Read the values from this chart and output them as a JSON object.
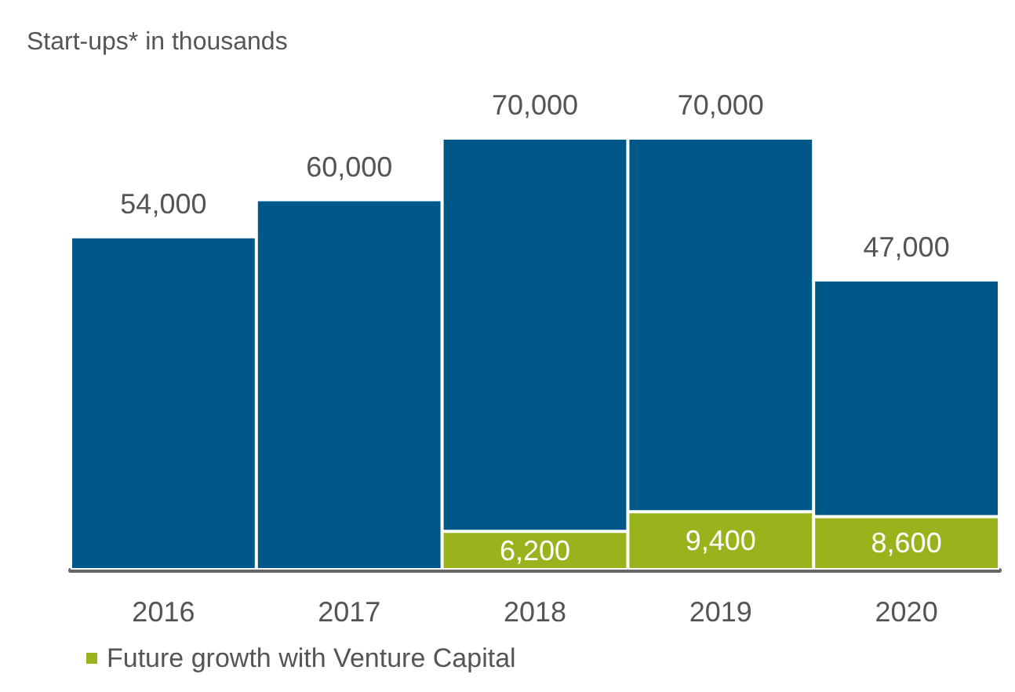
{
  "chart_data": {
    "type": "bar",
    "title": "Start-ups* in thousands",
    "categories": [
      "2016",
      "2017",
      "2018",
      "2019",
      "2020"
    ],
    "stacked": true,
    "legend": "bottom left",
    "series": [
      {
        "name": "Future growth with Venture Capital",
        "color": "#99b31c",
        "values": [
          null,
          null,
          6200,
          9400,
          8600
        ],
        "value_labels": [
          null,
          null,
          "6,200",
          "9,400",
          "8,600"
        ]
      },
      {
        "color": "#005888",
        "values": [
          54000,
          60000,
          63800,
          60600,
          38400
        ]
      }
    ],
    "totals": [
      "54,000",
      "60,000",
      "70,000",
      "70,000",
      "47,000"
    ]
  }
}
